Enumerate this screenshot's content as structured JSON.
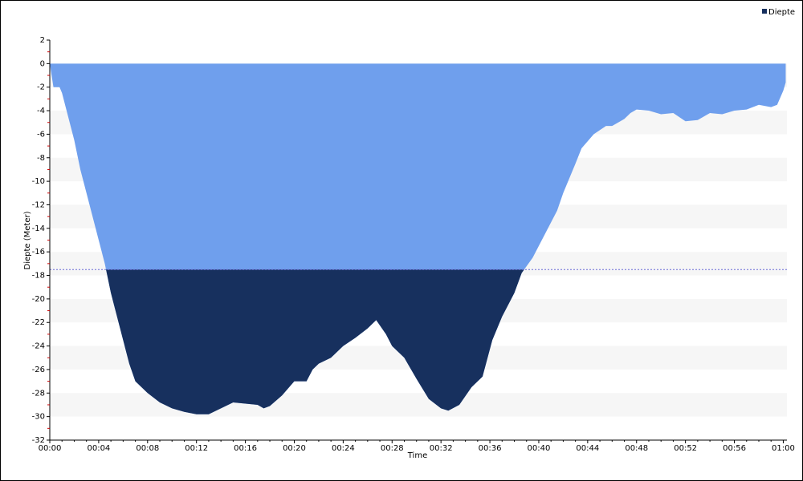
{
  "chart_data": {
    "type": "area",
    "legend": "Diepte",
    "legend_position": "top-right",
    "xlabel": "Time",
    "ylabel": "Diepte (Meter)",
    "color": "#6f9fed",
    "deep_color": "#17305e",
    "threshold": -17.5,
    "threshold_color": "#6b6bd6",
    "xlim": [
      0,
      60.3
    ],
    "ylim": [
      -32,
      2
    ],
    "xticks": [
      {
        "value": 0,
        "label": "00:00"
      },
      {
        "value": 4,
        "label": "00:04"
      },
      {
        "value": 8,
        "label": "00:08"
      },
      {
        "value": 12,
        "label": "00:12"
      },
      {
        "value": 16,
        "label": "00:16"
      },
      {
        "value": 20,
        "label": "00:20"
      },
      {
        "value": 24,
        "label": "00:24"
      },
      {
        "value": 28,
        "label": "00:28"
      },
      {
        "value": 32,
        "label": "00:32"
      },
      {
        "value": 36,
        "label": "00:36"
      },
      {
        "value": 40,
        "label": "00:40"
      },
      {
        "value": 44,
        "label": "00:44"
      },
      {
        "value": 48,
        "label": "00:48"
      },
      {
        "value": 52,
        "label": "00:52"
      },
      {
        "value": 56,
        "label": "00:56"
      },
      {
        "value": 60,
        "label": "01:00"
      }
    ],
    "yticks": [
      2,
      0,
      -2,
      -4,
      -6,
      -8,
      -10,
      -12,
      -14,
      -16,
      -18,
      -20,
      -22,
      -24,
      -26,
      -28,
      -30,
      -32
    ],
    "x": [
      0,
      0.3,
      0.8,
      1,
      1.5,
      2,
      2.5,
      3,
      3.5,
      4,
      4.5,
      5,
      5.5,
      6,
      6.5,
      7,
      8,
      9,
      10,
      11,
      12,
      13,
      14,
      15,
      16,
      17,
      17.5,
      18,
      19,
      20,
      21,
      21.5,
      22,
      23,
      24,
      25,
      26,
      26.7,
      27.5,
      28,
      29,
      30,
      31,
      32,
      32.6,
      33.5,
      34.5,
      35.4,
      36.2,
      37,
      38,
      38.6,
      39.5,
      40.5,
      41.5,
      42,
      43,
      43.5,
      44.5,
      45.5,
      46,
      47,
      47.5,
      48,
      49,
      50,
      51,
      52,
      53,
      54,
      55,
      56,
      57,
      58,
      59,
      59.5,
      60,
      60.2
    ],
    "series": [
      {
        "name": "Diepte",
        "values": [
          0,
          -2,
          -2,
          -2.5,
          -4.5,
          -6.5,
          -9,
          -11,
          -13,
          -15,
          -17,
          -19.5,
          -21.5,
          -23.5,
          -25.5,
          -27,
          -28,
          -28.8,
          -29.3,
          -29.6,
          -29.8,
          -29.8,
          -29.3,
          -28.8,
          -28.9,
          -29,
          -29.3,
          -29.1,
          -28.2,
          -27,
          -27,
          -26,
          -25.5,
          -25,
          -24,
          -23.3,
          -22.5,
          -21.8,
          -23,
          -24,
          -25,
          -26.8,
          -28.5,
          -29.3,
          -29.5,
          -29,
          -27.5,
          -26.6,
          -23.5,
          -21.5,
          -19.5,
          -17.8,
          -16.5,
          -14.5,
          -12.5,
          -11,
          -8.5,
          -7.2,
          -6,
          -5.3,
          -5.3,
          -4.7,
          -4.2,
          -3.9,
          -4,
          -4.3,
          -4.2,
          -4.9,
          -4.8,
          -4.2,
          -4.3,
          -4,
          -3.9,
          -3.5,
          -3.7,
          -3.5,
          -2.3,
          -1.6
        ]
      }
    ]
  }
}
